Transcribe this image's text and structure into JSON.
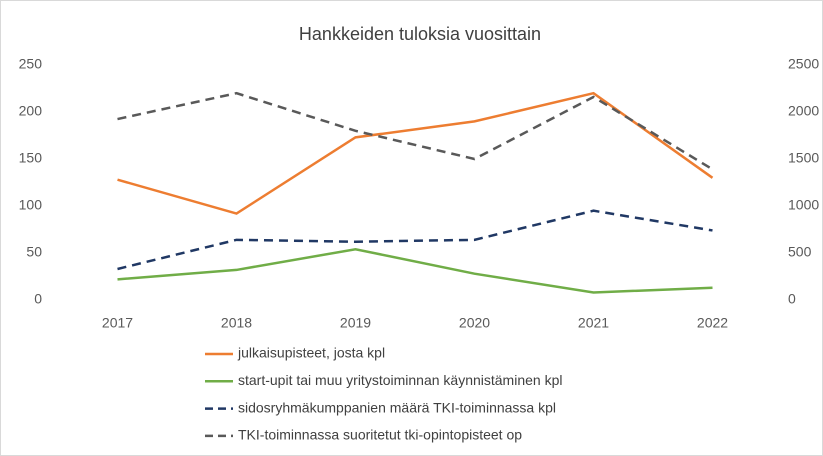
{
  "chart_data": {
    "type": "line",
    "title": "Hankkeiden tuloksia vuosittain",
    "categories": [
      "2017",
      "2018",
      "2019",
      "2020",
      "2021",
      "2022"
    ],
    "series": [
      {
        "name": "julkaisupisteet, josta kpl",
        "color": "#ed7d31",
        "line_style": "solid",
        "axis": "y",
        "values": [
          128,
          92,
          173,
          190,
          220,
          130
        ]
      },
      {
        "name": "start-upit tai muu yritystoiminnan käynnistäminen kpl",
        "color": "#70ad47",
        "line_style": "solid",
        "axis": "y",
        "values": [
          22,
          32,
          54,
          28,
          8,
          13
        ]
      },
      {
        "name": "sidosryhmäkumppanien määrä TKI-toiminnassa kpl",
        "color": "#203864",
        "line_style": "dashed",
        "axis": "y",
        "values": [
          33,
          64,
          62,
          64,
          95,
          74
        ]
      },
      {
        "name": "TKI-toiminnassa suoritetut tki-opintopisteet op",
        "color": "#595959",
        "line_style": "dashed",
        "axis": "y2",
        "values": [
          1925,
          2200,
          1800,
          1500,
          2160,
          1390
        ]
      }
    ],
    "ylim": [
      0,
      250
    ],
    "yticks": [
      0,
      50,
      100,
      150,
      200,
      250
    ],
    "y2lim": [
      0,
      2500
    ],
    "y2ticks": [
      0,
      500,
      1000,
      1500,
      2000,
      2500
    ],
    "grid": false,
    "legend": "bottom"
  }
}
